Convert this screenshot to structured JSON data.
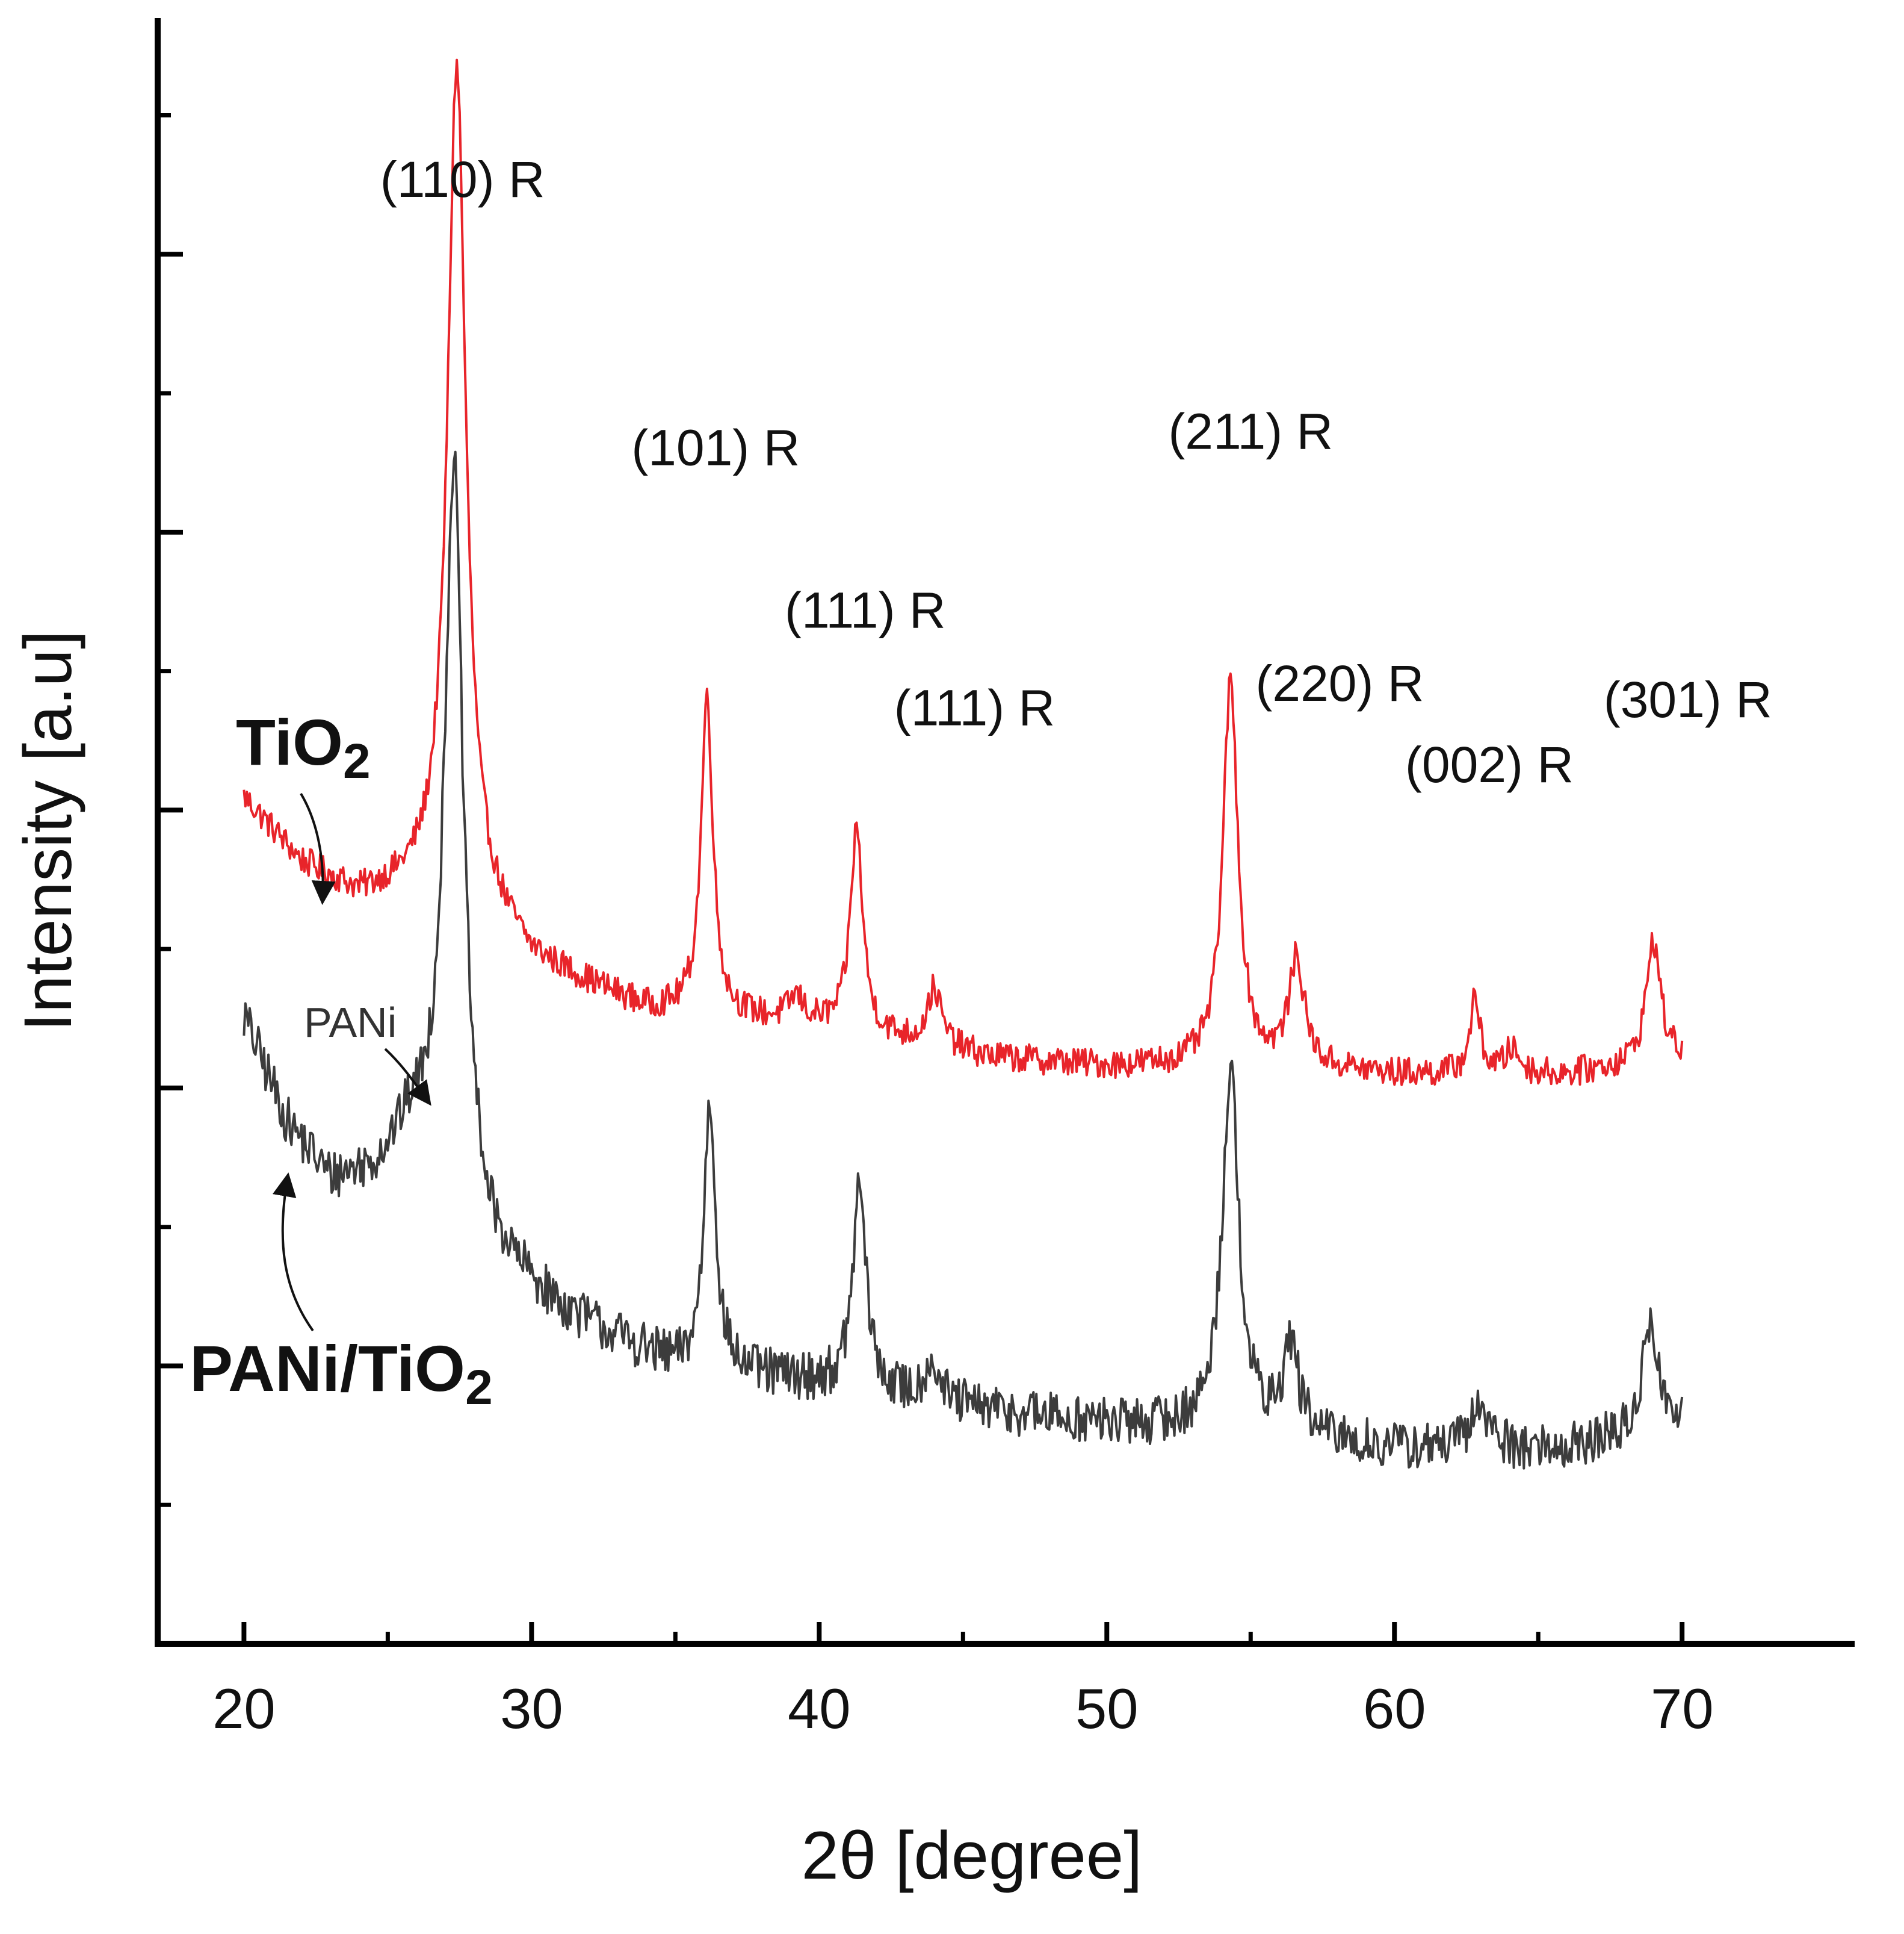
{
  "chart_data": {
    "type": "line",
    "title": "",
    "xlabel": "2θ [degree]",
    "ylabel": "Intensity [a.u]",
    "xlim": [
      17,
      76
    ],
    "ylim": [
      0,
      100
    ],
    "x_ticks": [
      20,
      30,
      40,
      50,
      60,
      70
    ],
    "x_tick_labels": [
      "20",
      "30",
      "40",
      "50",
      "60",
      "70"
    ],
    "y_tick_labels_shown": false,
    "series": [
      {
        "name": "TiO2",
        "label_main": "TiO",
        "label_sub": "2",
        "color": "#e8242a",
        "baseline": [
          [
            20,
            52
          ],
          [
            22,
            48
          ],
          [
            24,
            46
          ],
          [
            26,
            46.5
          ],
          [
            27.2,
            47
          ],
          [
            30,
            42
          ],
          [
            34,
            39
          ],
          [
            40,
            38
          ],
          [
            46,
            36
          ],
          [
            50,
            35.5
          ],
          [
            56,
            35.5
          ],
          [
            60,
            35
          ],
          [
            66,
            35
          ],
          [
            70,
            36
          ]
        ],
        "peaks": [
          {
            "x": 27.4,
            "height": 50.5,
            "width": 0.38
          },
          {
            "x": 36.1,
            "height": 19.5,
            "width": 0.25
          },
          {
            "x": 39.2,
            "height": 1.5,
            "width": 0.3
          },
          {
            "x": 41.3,
            "height": 12.5,
            "width": 0.26
          },
          {
            "x": 44.0,
            "height": 3.5,
            "width": 0.3
          },
          {
            "x": 54.3,
            "height": 23.5,
            "width": 0.32
          },
          {
            "x": 56.6,
            "height": 6.5,
            "width": 0.32
          },
          {
            "x": 62.8,
            "height": 4.5,
            "width": 0.22
          },
          {
            "x": 64.1,
            "height": 1.5,
            "width": 0.3
          },
          {
            "x": 69.0,
            "height": 7.5,
            "width": 0.3
          }
        ],
        "noise": 0.9
      },
      {
        "name": "PANi/TiO2",
        "label_main": "PANi/TiO",
        "label_sub": "2",
        "color": "#3c3c3c",
        "baseline": [
          [
            20,
            38.5
          ],
          [
            21.5,
            32
          ],
          [
            23,
            28.5
          ],
          [
            24.5,
            29
          ],
          [
            25.8,
            31.5
          ],
          [
            27,
            30
          ],
          [
            28.5,
            24
          ],
          [
            31,
            20.5
          ],
          [
            35,
            17
          ],
          [
            40,
            16
          ],
          [
            45,
            14.5
          ],
          [
            50,
            13.5
          ],
          [
            55,
            13
          ],
          [
            60,
            12
          ],
          [
            66,
            12
          ],
          [
            70,
            13.5
          ]
        ],
        "peaks": [
          {
            "x": 27.3,
            "height": 44,
            "width": 0.38
          },
          {
            "x": 36.2,
            "height": 16.5,
            "width": 0.25
          },
          {
            "x": 41.4,
            "height": 12.5,
            "width": 0.28
          },
          {
            "x": 43.9,
            "height": 2.5,
            "width": 0.3
          },
          {
            "x": 54.3,
            "height": 22,
            "width": 0.36
          },
          {
            "x": 56.4,
            "height": 5.5,
            "width": 0.32
          },
          {
            "x": 63.0,
            "height": 2.8,
            "width": 0.35
          },
          {
            "x": 68.9,
            "height": 7,
            "width": 0.3
          }
        ],
        "noise": 1.5
      }
    ],
    "annotations": [
      {
        "text": "(110) R",
        "x": 27.6,
        "y": 89.0
      },
      {
        "text": "(101) R",
        "x": 36.4,
        "y": 72.5
      },
      {
        "text": "(111) R",
        "x": 41.6,
        "y": 62.5
      },
      {
        "text": "(111) R",
        "x": 45.4,
        "y": 56.5
      },
      {
        "text": "(211) R",
        "x": 55.0,
        "y": 73.5
      },
      {
        "text": "(220) R",
        "x": 58.1,
        "y": 58.0
      },
      {
        "text": "(002) R",
        "x": 63.3,
        "y": 53.0
      },
      {
        "text": "(301) R",
        "x": 70.2,
        "y": 57.0
      }
    ],
    "pani_note": "PANi"
  }
}
